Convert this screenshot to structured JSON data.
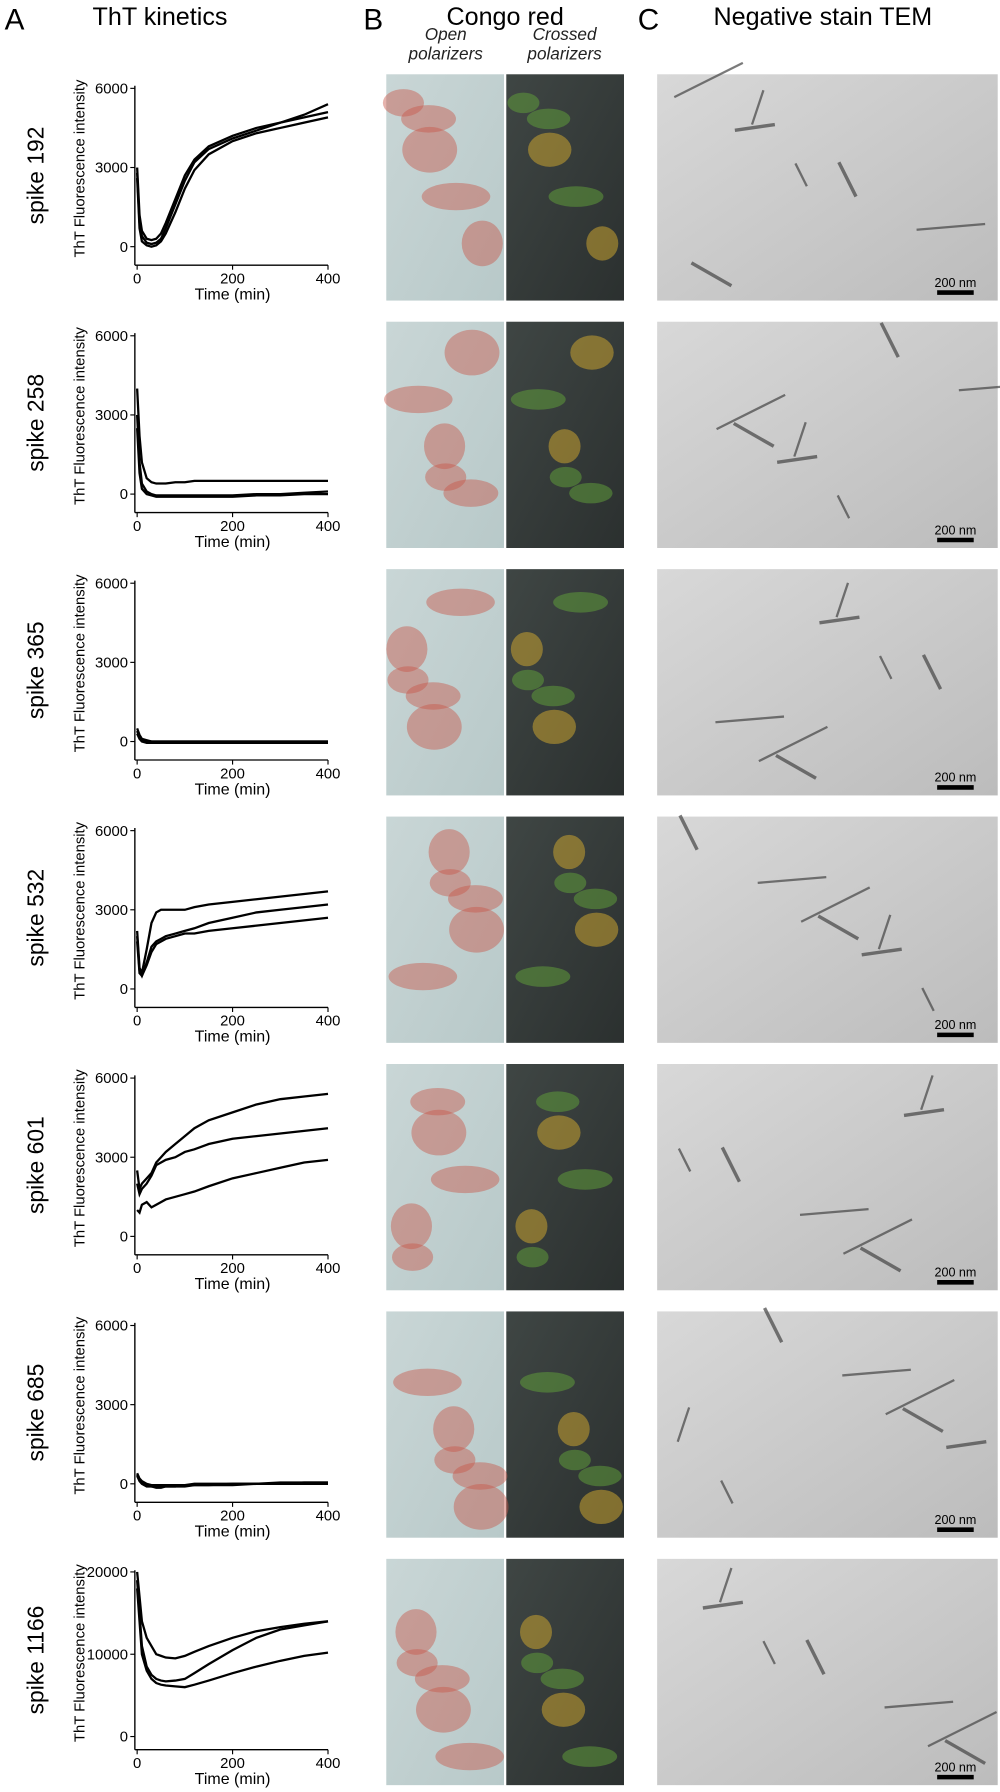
{
  "headers": {
    "a_letter": "A",
    "a_title": "ThT kinetics",
    "b_letter": "B",
    "b_title": "Congo red",
    "b_open": "Open polarizers",
    "b_crossed": "Crossed polarizers",
    "c_letter": "C",
    "c_title": "Negative stain TEM"
  },
  "scale_bars": [
    "200 nm",
    "200 nm",
    "200 nm",
    "200 nm",
    "200 nm",
    "200 nm",
    "200 nm"
  ],
  "chart_data": [
    {
      "type": "line",
      "title": "spike 192",
      "x_label": "Time (min)",
      "y_label": "ThT Fluorescence intensity",
      "x": [
        0,
        5,
        10,
        20,
        30,
        40,
        50,
        60,
        80,
        100,
        120,
        150,
        200,
        250,
        300,
        350,
        400
      ],
      "series": [
        {
          "color": "#000000",
          "values": [
            3000,
            1200,
            600,
            300,
            250,
            300,
            500,
            900,
            1800,
            2700,
            3300,
            3800,
            4200,
            4500,
            4700,
            4900,
            5100
          ]
        },
        {
          "color": "#000000",
          "values": [
            2800,
            900,
            400,
            150,
            100,
            150,
            300,
            700,
            1600,
            2500,
            3200,
            3700,
            4100,
            4400,
            4700,
            5000,
            5400
          ]
        },
        {
          "color": "#000000",
          "values": [
            2600,
            700,
            200,
            50,
            0,
            50,
            200,
            500,
            1300,
            2200,
            2900,
            3500,
            4000,
            4300,
            4500,
            4700,
            4900
          ]
        }
      ],
      "xlim": [
        0,
        400
      ],
      "ylim": [
        -700,
        6100
      ],
      "xticks": [
        0,
        200,
        400
      ],
      "yticks": [
        0,
        3000,
        6000
      ]
    },
    {
      "type": "line",
      "title": "spike 258",
      "x_label": "Time (min)",
      "y_label": "ThT Fluorescence intensity",
      "x": [
        0,
        5,
        10,
        20,
        30,
        40,
        50,
        60,
        80,
        100,
        120,
        150,
        200,
        250,
        300,
        350,
        400
      ],
      "series": [
        {
          "color": "#000000",
          "values": [
            4000,
            2200,
            1200,
            600,
            450,
            400,
            400,
            400,
            450,
            450,
            500,
            500,
            500,
            500,
            500,
            500,
            500
          ]
        },
        {
          "color": "#000000",
          "values": [
            3000,
            1200,
            400,
            100,
            0,
            -50,
            -50,
            -50,
            -50,
            -50,
            -50,
            -50,
            -50,
            0,
            0,
            50,
            100
          ]
        },
        {
          "color": "#000000",
          "values": [
            2500,
            800,
            200,
            0,
            -50,
            -100,
            -100,
            -100,
            -100,
            -100,
            -100,
            -100,
            -100,
            -50,
            -50,
            0,
            0
          ]
        }
      ],
      "xlim": [
        0,
        400
      ],
      "ylim": [
        -700,
        6100
      ],
      "xticks": [
        0,
        200,
        400
      ],
      "yticks": [
        0,
        3000,
        6000
      ]
    },
    {
      "type": "line",
      "title": "spike 365",
      "x_label": "Time (min)",
      "y_label": "ThT Fluorescence intensity",
      "x": [
        0,
        5,
        10,
        20,
        30,
        40,
        50,
        60,
        80,
        100,
        120,
        150,
        200,
        250,
        300,
        350,
        400
      ],
      "series": [
        {
          "color": "#000000",
          "values": [
            500,
            250,
            100,
            50,
            0,
            0,
            0,
            0,
            0,
            0,
            0,
            0,
            0,
            0,
            0,
            0,
            0
          ]
        },
        {
          "color": "#000000",
          "values": [
            400,
            150,
            50,
            0,
            0,
            0,
            0,
            0,
            0,
            0,
            0,
            0,
            0,
            0,
            0,
            0,
            0
          ]
        },
        {
          "color": "#000000",
          "values": [
            300,
            100,
            0,
            -50,
            -50,
            -50,
            -50,
            -50,
            -50,
            -50,
            -50,
            -50,
            -50,
            -50,
            -50,
            -50,
            -50
          ]
        }
      ],
      "xlim": [
        0,
        400
      ],
      "ylim": [
        -700,
        6100
      ],
      "xticks": [
        0,
        200,
        400
      ],
      "yticks": [
        0,
        3000,
        6000
      ]
    },
    {
      "type": "line",
      "title": "spike 532",
      "x_label": "Time (min)",
      "y_label": "ThT Fluorescence intensity",
      "x": [
        0,
        5,
        10,
        20,
        30,
        40,
        50,
        60,
        80,
        100,
        120,
        150,
        200,
        250,
        300,
        350,
        400
      ],
      "series": [
        {
          "color": "#000000",
          "values": [
            2200,
            800,
            600,
            1500,
            2500,
            2900,
            3000,
            3000,
            3000,
            3000,
            3100,
            3200,
            3300,
            3400,
            3500,
            3600,
            3700
          ]
        },
        {
          "color": "#000000",
          "values": [
            2000,
            700,
            500,
            1000,
            1600,
            1800,
            1900,
            2000,
            2100,
            2200,
            2300,
            2500,
            2700,
            2900,
            3000,
            3100,
            3200
          ]
        },
        {
          "color": "#000000",
          "values": [
            1800,
            600,
            500,
            900,
            1400,
            1700,
            1800,
            1900,
            2000,
            2100,
            2100,
            2200,
            2300,
            2400,
            2500,
            2600,
            2700
          ]
        }
      ],
      "xlim": [
        0,
        400
      ],
      "ylim": [
        -700,
        6100
      ],
      "xticks": [
        0,
        200,
        400
      ],
      "yticks": [
        0,
        3000,
        6000
      ]
    },
    {
      "type": "line",
      "title": "spike 601",
      "x_label": "Time (min)",
      "y_label": "ThT Fluorescence intensity",
      "x": [
        0,
        5,
        10,
        20,
        30,
        40,
        50,
        60,
        80,
        100,
        120,
        150,
        200,
        250,
        300,
        350,
        400
      ],
      "series": [
        {
          "color": "#000000",
          "values": [
            2500,
            1800,
            2000,
            2200,
            2400,
            2800,
            3000,
            3200,
            3500,
            3800,
            4100,
            4400,
            4700,
            5000,
            5200,
            5300,
            5400
          ]
        },
        {
          "color": "#000000",
          "values": [
            2000,
            1600,
            1800,
            2000,
            2300,
            2700,
            2800,
            2900,
            3000,
            3200,
            3300,
            3500,
            3700,
            3800,
            3900,
            4000,
            4100
          ]
        },
        {
          "color": "#000000",
          "values": [
            1000,
            900,
            1200,
            1300,
            1100,
            1200,
            1300,
            1400,
            1500,
            1600,
            1700,
            1900,
            2200,
            2400,
            2600,
            2800,
            2900
          ]
        }
      ],
      "xlim": [
        0,
        400
      ],
      "ylim": [
        -700,
        6100
      ],
      "xticks": [
        0,
        200,
        400
      ],
      "yticks": [
        0,
        3000,
        6000
      ]
    },
    {
      "type": "line",
      "title": "spike 685",
      "x_label": "Time (min)",
      "y_label": "ThT Fluorescence intensity",
      "x": [
        0,
        5,
        10,
        20,
        30,
        40,
        50,
        60,
        80,
        100,
        120,
        150,
        200,
        250,
        300,
        350,
        400
      ],
      "series": [
        {
          "color": "#000000",
          "values": [
            400,
            200,
            100,
            0,
            -50,
            -50,
            -50,
            -50,
            -50,
            -50,
            0,
            0,
            0,
            0,
            50,
            50,
            50
          ]
        },
        {
          "color": "#000000",
          "values": [
            350,
            150,
            50,
            -50,
            -100,
            -100,
            -100,
            -100,
            -100,
            -50,
            -50,
            -50,
            0,
            0,
            0,
            50,
            50
          ]
        },
        {
          "color": "#000000",
          "values": [
            300,
            100,
            0,
            -100,
            -100,
            -150,
            -150,
            -100,
            -100,
            -100,
            -50,
            -50,
            -50,
            0,
            0,
            0,
            0
          ]
        }
      ],
      "xlim": [
        0,
        400
      ],
      "ylim": [
        -700,
        6100
      ],
      "xticks": [
        0,
        200,
        400
      ],
      "yticks": [
        0,
        3000,
        6000
      ]
    },
    {
      "type": "line",
      "title": "spike 1166",
      "x_label": "Time (min)",
      "y_label": "ThT Fluorescence intensity",
      "x": [
        0,
        5,
        10,
        20,
        30,
        40,
        50,
        60,
        80,
        100,
        120,
        150,
        200,
        250,
        300,
        350,
        400
      ],
      "series": [
        {
          "color": "#000000",
          "values": [
            20000,
            17000,
            14000,
            12000,
            11000,
            10000,
            9800,
            9600,
            9500,
            9800,
            10300,
            11000,
            12000,
            12800,
            13300,
            13700,
            14000
          ]
        },
        {
          "color": "#000000",
          "values": [
            19000,
            15000,
            11000,
            8500,
            7500,
            7000,
            6800,
            6700,
            6800,
            7000,
            7700,
            8800,
            10500,
            12000,
            13000,
            13500,
            14000
          ]
        },
        {
          "color": "#000000",
          "values": [
            18000,
            14000,
            10000,
            8000,
            7000,
            6500,
            6300,
            6200,
            6100,
            6000,
            6300,
            6800,
            7700,
            8500,
            9200,
            9800,
            10200
          ]
        }
      ],
      "xlim": [
        0,
        400
      ],
      "ylim": [
        -1600,
        20200
      ],
      "xticks": [
        0,
        200,
        400
      ],
      "yticks": [
        0,
        10000,
        20000
      ]
    }
  ]
}
